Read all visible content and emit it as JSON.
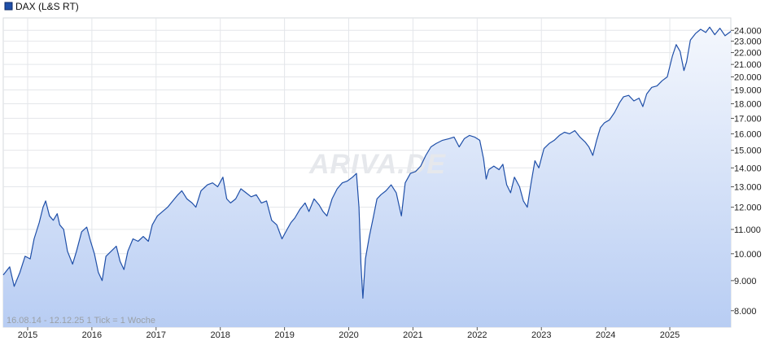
{
  "chart_data": {
    "type": "line",
    "title": "",
    "legend": "DAX (L&S RT)",
    "legend_position": "top-left",
    "watermark": "ARIVA.DE",
    "info_text": "16.08.14 - 12.12.25   1 Tick = 1 Woche",
    "x_ticks": [
      "2015",
      "2016",
      "2017",
      "2018",
      "2019",
      "2020",
      "2021",
      "2022",
      "2023",
      "2024",
      "2025"
    ],
    "y_ticks": [
      "8.000",
      "9.000",
      "10.000",
      "11.000",
      "12.000",
      "13.000",
      "14.000",
      "15.000",
      "16.000",
      "17.000",
      "18.000",
      "19.000",
      "20.000",
      "21.000",
      "22.000",
      "23.000",
      "24.000"
    ],
    "y_scale": "log",
    "grid": true,
    "line_color": "#1f4fa8",
    "fill_color_top": "#f4f7fd",
    "fill_color_bottom": "#b8cdf3",
    "x_range": [
      2014.62,
      2025.95
    ],
    "y_range": [
      7500,
      25200
    ],
    "series": [
      {
        "name": "DAX (L&S RT)",
        "points": [
          [
            2014.62,
            9200
          ],
          [
            2014.72,
            9500
          ],
          [
            2014.79,
            8800
          ],
          [
            2014.88,
            9300
          ],
          [
            2014.96,
            9900
          ],
          [
            2015.04,
            9800
          ],
          [
            2015.1,
            10600
          ],
          [
            2015.18,
            11300
          ],
          [
            2015.24,
            12000
          ],
          [
            2015.28,
            12300
          ],
          [
            2015.34,
            11600
          ],
          [
            2015.4,
            11400
          ],
          [
            2015.46,
            11700
          ],
          [
            2015.5,
            11200
          ],
          [
            2015.56,
            11000
          ],
          [
            2015.62,
            10100
          ],
          [
            2015.7,
            9600
          ],
          [
            2015.76,
            10100
          ],
          [
            2015.84,
            10900
          ],
          [
            2015.92,
            11100
          ],
          [
            2015.98,
            10500
          ],
          [
            2016.04,
            10000
          ],
          [
            2016.1,
            9300
          ],
          [
            2016.16,
            9000
          ],
          [
            2016.22,
            9900
          ],
          [
            2016.3,
            10100
          ],
          [
            2016.38,
            10300
          ],
          [
            2016.44,
            9700
          ],
          [
            2016.5,
            9400
          ],
          [
            2016.56,
            10100
          ],
          [
            2016.64,
            10600
          ],
          [
            2016.72,
            10500
          ],
          [
            2016.8,
            10700
          ],
          [
            2016.88,
            10500
          ],
          [
            2016.94,
            11200
          ],
          [
            2017.02,
            11600
          ],
          [
            2017.1,
            11800
          ],
          [
            2017.18,
            12000
          ],
          [
            2017.26,
            12300
          ],
          [
            2017.34,
            12600
          ],
          [
            2017.4,
            12800
          ],
          [
            2017.48,
            12400
          ],
          [
            2017.56,
            12200
          ],
          [
            2017.62,
            12000
          ],
          [
            2017.7,
            12800
          ],
          [
            2017.8,
            13100
          ],
          [
            2017.88,
            13200
          ],
          [
            2017.96,
            13000
          ],
          [
            2018.04,
            13500
          ],
          [
            2018.1,
            12400
          ],
          [
            2018.16,
            12200
          ],
          [
            2018.24,
            12400
          ],
          [
            2018.32,
            12900
          ],
          [
            2018.4,
            12700
          ],
          [
            2018.48,
            12500
          ],
          [
            2018.56,
            12600
          ],
          [
            2018.64,
            12200
          ],
          [
            2018.72,
            12300
          ],
          [
            2018.8,
            11400
          ],
          [
            2018.88,
            11200
          ],
          [
            2018.96,
            10600
          ],
          [
            2019.04,
            11000
          ],
          [
            2019.1,
            11300
          ],
          [
            2019.16,
            11500
          ],
          [
            2019.24,
            11900
          ],
          [
            2019.32,
            12200
          ],
          [
            2019.38,
            11800
          ],
          [
            2019.46,
            12400
          ],
          [
            2019.54,
            12100
          ],
          [
            2019.6,
            11800
          ],
          [
            2019.66,
            11600
          ],
          [
            2019.74,
            12400
          ],
          [
            2019.82,
            12900
          ],
          [
            2019.9,
            13200
          ],
          [
            2019.98,
            13300
          ],
          [
            2020.06,
            13500
          ],
          [
            2020.12,
            13700
          ],
          [
            2020.16,
            12000
          ],
          [
            2020.19,
            9600
          ],
          [
            2020.22,
            8400
          ],
          [
            2020.26,
            9800
          ],
          [
            2020.32,
            10700
          ],
          [
            2020.38,
            11500
          ],
          [
            2020.44,
            12400
          ],
          [
            2020.5,
            12600
          ],
          [
            2020.58,
            12800
          ],
          [
            2020.66,
            13100
          ],
          [
            2020.74,
            12700
          ],
          [
            2020.82,
            11600
          ],
          [
            2020.88,
            13200
          ],
          [
            2020.96,
            13700
          ],
          [
            2021.04,
            13800
          ],
          [
            2021.12,
            14100
          ],
          [
            2021.2,
            14700
          ],
          [
            2021.28,
            15200
          ],
          [
            2021.36,
            15400
          ],
          [
            2021.46,
            15600
          ],
          [
            2021.56,
            15700
          ],
          [
            2021.64,
            15800
          ],
          [
            2021.72,
            15200
          ],
          [
            2021.8,
            15700
          ],
          [
            2021.88,
            15900
          ],
          [
            2021.96,
            15800
          ],
          [
            2022.04,
            15600
          ],
          [
            2022.1,
            14500
          ],
          [
            2022.14,
            13400
          ],
          [
            2022.18,
            13900
          ],
          [
            2022.26,
            14100
          ],
          [
            2022.34,
            13900
          ],
          [
            2022.4,
            14200
          ],
          [
            2022.46,
            13100
          ],
          [
            2022.52,
            12700
          ],
          [
            2022.58,
            13500
          ],
          [
            2022.66,
            13000
          ],
          [
            2022.72,
            12300
          ],
          [
            2022.78,
            12000
          ],
          [
            2022.84,
            13200
          ],
          [
            2022.9,
            14400
          ],
          [
            2022.96,
            14000
          ],
          [
            2023.04,
            15100
          ],
          [
            2023.12,
            15400
          ],
          [
            2023.2,
            15600
          ],
          [
            2023.28,
            15900
          ],
          [
            2023.36,
            16100
          ],
          [
            2023.44,
            16000
          ],
          [
            2023.52,
            16200
          ],
          [
            2023.6,
            15800
          ],
          [
            2023.68,
            15500
          ],
          [
            2023.74,
            15200
          ],
          [
            2023.8,
            14700
          ],
          [
            2023.86,
            15600
          ],
          [
            2023.92,
            16400
          ],
          [
            2023.98,
            16700
          ],
          [
            2024.06,
            16900
          ],
          [
            2024.14,
            17400
          ],
          [
            2024.22,
            18100
          ],
          [
            2024.28,
            18500
          ],
          [
            2024.36,
            18600
          ],
          [
            2024.44,
            18200
          ],
          [
            2024.52,
            18400
          ],
          [
            2024.58,
            17800
          ],
          [
            2024.64,
            18700
          ],
          [
            2024.72,
            19200
          ],
          [
            2024.8,
            19300
          ],
          [
            2024.88,
            19700
          ],
          [
            2024.96,
            20000
          ],
          [
            2025.04,
            21700
          ],
          [
            2025.1,
            22700
          ],
          [
            2025.16,
            22100
          ],
          [
            2025.22,
            20500
          ],
          [
            2025.26,
            21200
          ],
          [
            2025.32,
            23100
          ],
          [
            2025.4,
            23700
          ],
          [
            2025.48,
            24100
          ],
          [
            2025.56,
            23800
          ],
          [
            2025.62,
            24300
          ],
          [
            2025.7,
            23600
          ],
          [
            2025.78,
            24200
          ],
          [
            2025.86,
            23500
          ],
          [
            2025.95,
            23900
          ]
        ]
      }
    ]
  }
}
